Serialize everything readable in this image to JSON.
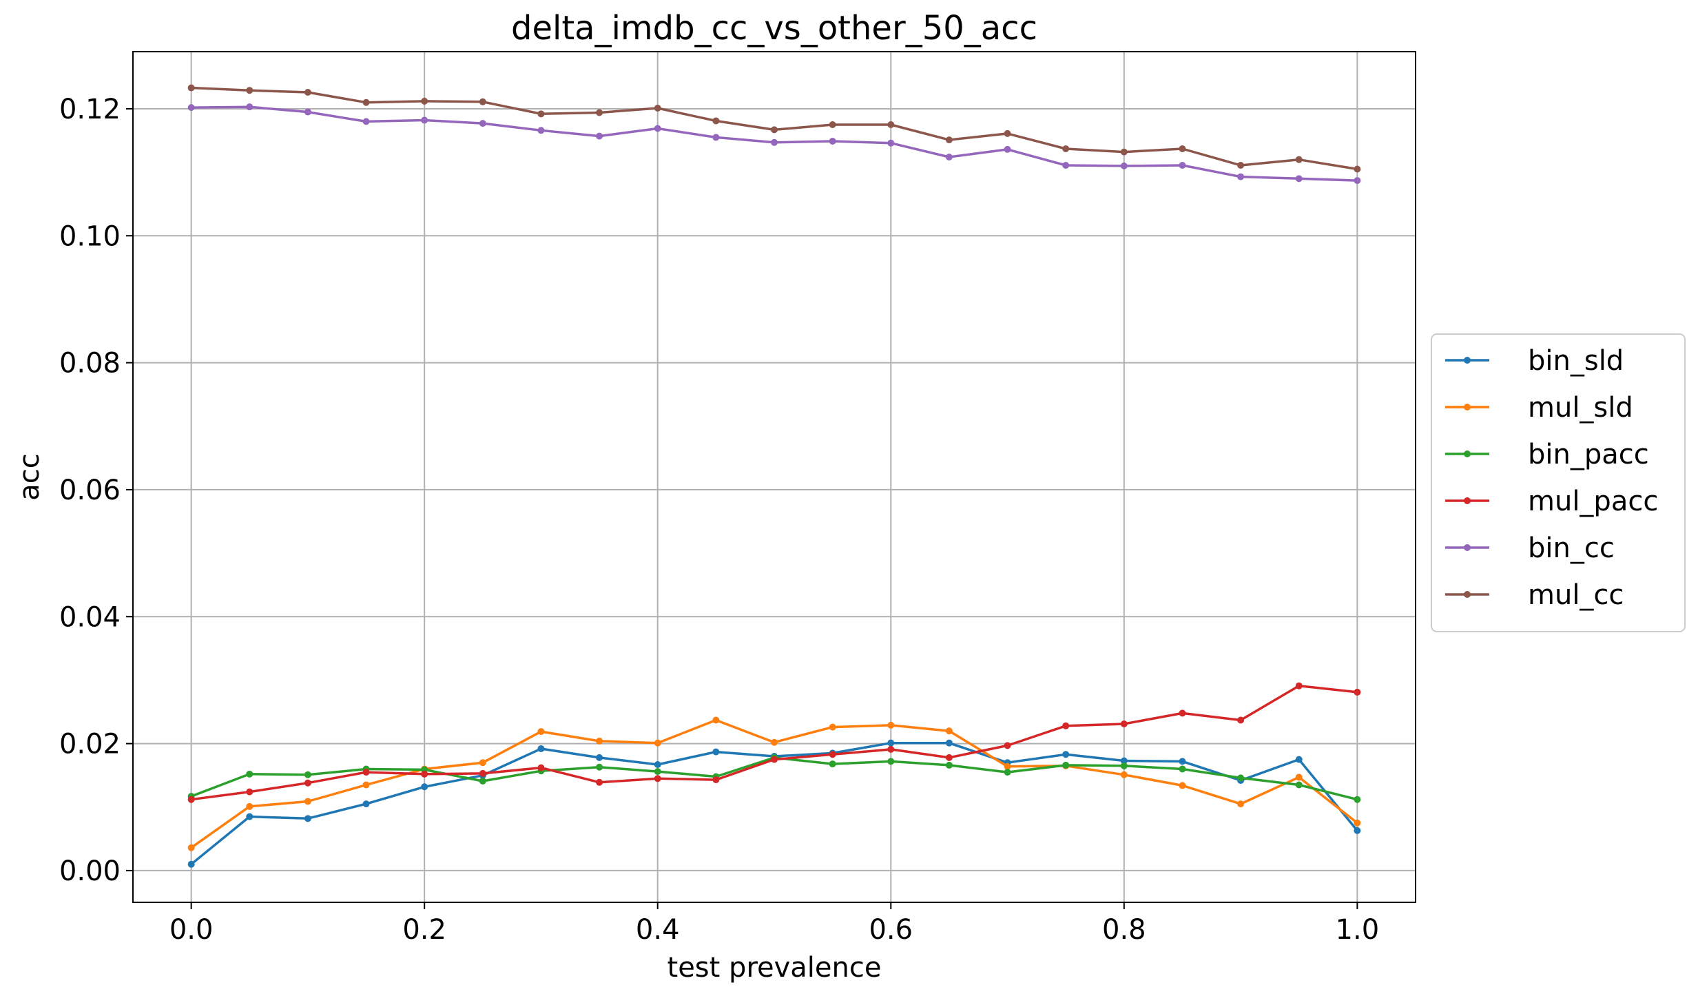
{
  "chart_data": {
    "type": "line",
    "title": "delta_imdb_cc_vs_other_50_acc",
    "xlabel": "test prevalence",
    "ylabel": "acc",
    "xlim": [
      -0.05,
      1.05
    ],
    "ylim": [
      -0.005,
      0.129
    ],
    "xticks": [
      0.0,
      0.2,
      0.4,
      0.6,
      0.8,
      1.0
    ],
    "xtick_labels": [
      "0.0",
      "0.2",
      "0.4",
      "0.6",
      "0.8",
      "1.0"
    ],
    "yticks": [
      0.0,
      0.02,
      0.04,
      0.06,
      0.08,
      0.1,
      0.12
    ],
    "ytick_labels": [
      "0.00",
      "0.02",
      "0.04",
      "0.06",
      "0.08",
      "0.10",
      "0.12"
    ],
    "grid": true,
    "legend_position": "center-right, outside plot area",
    "x": [
      0.0,
      0.05,
      0.1,
      0.15,
      0.2,
      0.25,
      0.3,
      0.35,
      0.4,
      0.45,
      0.5,
      0.55,
      0.6,
      0.65,
      0.7,
      0.75,
      0.8,
      0.85,
      0.9,
      0.95,
      1.0
    ],
    "series": [
      {
        "name": "bin_sld",
        "color": "#1f77b4",
        "values": [
          0.001,
          0.0085,
          0.0082,
          0.0105,
          0.0132,
          0.015,
          0.0192,
          0.0178,
          0.0167,
          0.0187,
          0.018,
          0.0185,
          0.0201,
          0.0201,
          0.017,
          0.0183,
          0.0173,
          0.0172,
          0.0142,
          0.0175,
          0.0063
        ]
      },
      {
        "name": "mul_sld",
        "color": "#ff7f0e",
        "values": [
          0.0036,
          0.0101,
          0.0109,
          0.0135,
          0.016,
          0.017,
          0.0219,
          0.0204,
          0.0201,
          0.0237,
          0.0202,
          0.0226,
          0.0229,
          0.022,
          0.0164,
          0.0165,
          0.0151,
          0.0134,
          0.0105,
          0.0147,
          0.0075
        ]
      },
      {
        "name": "bin_pacc",
        "color": "#2ca02c",
        "values": [
          0.0117,
          0.0152,
          0.0151,
          0.016,
          0.0159,
          0.0141,
          0.0157,
          0.0163,
          0.0156,
          0.0148,
          0.0178,
          0.0168,
          0.0172,
          0.0166,
          0.0155,
          0.0166,
          0.0165,
          0.016,
          0.0146,
          0.0135,
          0.0112
        ]
      },
      {
        "name": "mul_pacc",
        "color": "#d62728",
        "values": [
          0.0112,
          0.0124,
          0.0138,
          0.0155,
          0.0152,
          0.0153,
          0.0162,
          0.0139,
          0.0145,
          0.0143,
          0.0175,
          0.0183,
          0.0191,
          0.0178,
          0.0197,
          0.0228,
          0.0231,
          0.0248,
          0.0237,
          0.0291,
          0.0281
        ]
      },
      {
        "name": "bin_cc",
        "color": "#9467bd",
        "values": [
          0.1202,
          0.1203,
          0.1195,
          0.118,
          0.1182,
          0.1177,
          0.1166,
          0.1157,
          0.1169,
          0.1155,
          0.1147,
          0.1149,
          0.1146,
          0.1124,
          0.1136,
          0.1111,
          0.111,
          0.1111,
          0.1093,
          0.109,
          0.1087
        ]
      },
      {
        "name": "mul_cc",
        "color": "#8c564b",
        "values": [
          0.1233,
          0.1229,
          0.1226,
          0.121,
          0.1212,
          0.1211,
          0.1192,
          0.1194,
          0.1201,
          0.1181,
          0.1167,
          0.1175,
          0.1175,
          0.1151,
          0.1161,
          0.1137,
          0.1132,
          0.1137,
          0.1111,
          0.112,
          0.1105
        ]
      }
    ]
  }
}
